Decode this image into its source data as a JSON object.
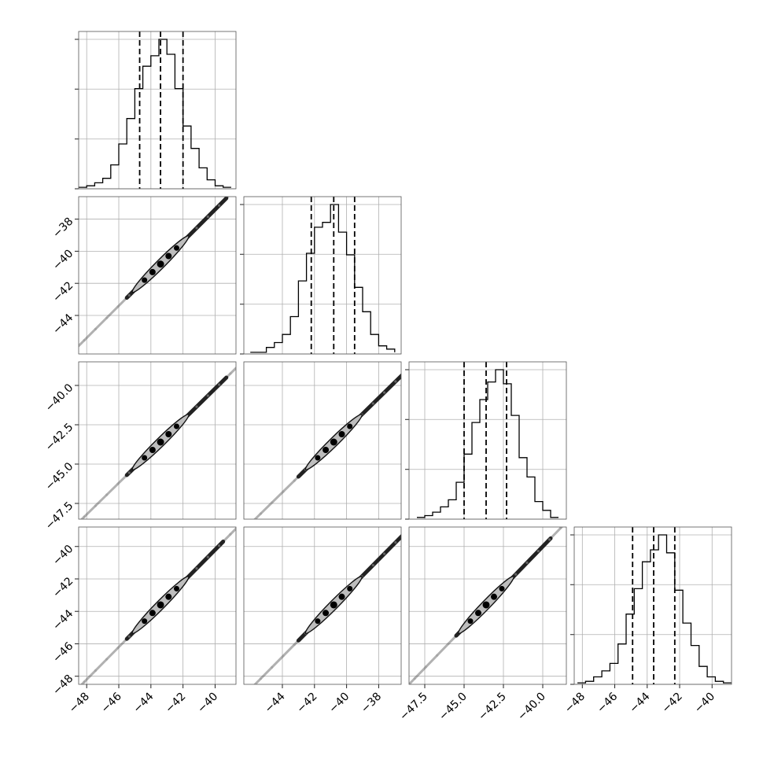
{
  "chart_data": {
    "type": "corner",
    "grid": true,
    "variables": [
      {
        "index": 0,
        "range": [
          -48.5,
          -38.7
        ],
        "ticks": [
          -48,
          -46,
          -44,
          -42,
          -40
        ],
        "tick_labels": [
          "−48",
          "−46",
          "−44",
          "−42",
          "−40"
        ],
        "quantiles": [
          -44.7,
          -43.4,
          -42.0
        ]
      },
      {
        "index": 1,
        "range": [
          -46.4,
          -36.6
        ],
        "ticks": [
          -44,
          -42,
          -40,
          -38
        ],
        "tick_labels": [
          "−44",
          "−42",
          "−40",
          "−38"
        ],
        "quantiles": [
          -42.2,
          -40.8,
          -39.5
        ]
      },
      {
        "index": 2,
        "range": [
          -48.5,
          -38.5
        ],
        "ticks": [
          -47.5,
          -45.0,
          -42.5,
          -40.0
        ],
        "tick_labels": [
          "−47.5",
          "−45.0",
          "−42.5",
          "−40.0"
        ],
        "quantiles": [
          -45.0,
          -43.6,
          -42.3
        ]
      },
      {
        "index": 3,
        "range": [
          -48.5,
          -38.8
        ],
        "ticks": [
          -48,
          -46,
          -44,
          -42,
          -40
        ],
        "tick_labels": [
          "−48",
          "−46",
          "−44",
          "−42",
          "−40"
        ],
        "quantiles": [
          -44.9,
          -43.6,
          -42.3
        ]
      }
    ],
    "histograms": [
      {
        "variable": 0,
        "bin_edges": [
          -48.5,
          -48.0,
          -47.5,
          -47.0,
          -46.5,
          -46.0,
          -45.5,
          -45.0,
          -44.5,
          -44.0,
          -43.5,
          -43.0,
          -42.5,
          -42.0,
          -41.5,
          -41.0,
          -40.5,
          -40.0,
          -39.5,
          -39.0
        ],
        "counts": [
          1,
          2,
          4,
          7,
          16,
          30,
          47,
          67,
          82,
          89,
          100,
          90,
          67,
          42,
          27,
          14,
          6,
          2,
          1
        ]
      },
      {
        "variable": 1,
        "bin_edges": [
          -46.0,
          -45.5,
          -45.0,
          -44.5,
          -44.0,
          -43.5,
          -43.0,
          -42.5,
          -42.0,
          -41.5,
          -41.0,
          -40.5,
          -40.0,
          -39.5,
          -39.0,
          -38.5,
          -38.0,
          -37.5,
          -37.0
        ],
        "counts": [
          1,
          1,
          4,
          7,
          12,
          23,
          45,
          62,
          78,
          81,
          92,
          75,
          61,
          41,
          26,
          12,
          5,
          3,
          1
        ]
      },
      {
        "variable": 2,
        "bin_edges": [
          -48.0,
          -47.5,
          -47.0,
          -46.5,
          -46.0,
          -45.5,
          -45.0,
          -44.5,
          -44.0,
          -43.5,
          -43.0,
          -42.5,
          -42.0,
          -41.5,
          -41.0,
          -40.5,
          -40.0,
          -39.5,
          -39.0
        ],
        "counts": [
          1,
          2,
          4,
          7,
          11,
          21,
          37,
          55,
          68,
          78,
          85,
          77,
          59,
          35,
          24,
          10,
          5,
          1
        ]
      },
      {
        "variable": 3,
        "bin_edges": [
          -48.3,
          -47.8,
          -47.3,
          -46.8,
          -46.3,
          -45.8,
          -45.3,
          -44.8,
          -44.3,
          -43.8,
          -43.3,
          -42.8,
          -42.3,
          -41.8,
          -41.3,
          -40.8,
          -40.3,
          -39.8,
          -39.3,
          -38.8
        ],
        "counts": [
          1,
          2,
          5,
          9,
          14,
          27,
          47,
          64,
          82,
          90,
          100,
          88,
          63,
          41,
          26,
          12,
          5,
          2,
          1
        ]
      }
    ],
    "scatter_panels": [
      {
        "x_variable": 0,
        "y_variable": 1,
        "means": [
          -43.4,
          -40.8
        ],
        "slope": 1.0,
        "correlation": 0.999,
        "spread": [
          -45.5,
          -39.3
        ]
      },
      {
        "x_variable": 0,
        "y_variable": 2,
        "means": [
          -43.4,
          -43.6
        ],
        "slope": 1.0,
        "correlation": 0.999,
        "spread": [
          -45.5,
          -39.3
        ]
      },
      {
        "x_variable": 1,
        "y_variable": 2,
        "means": [
          -40.8,
          -43.6
        ],
        "slope": 1.0,
        "correlation": 0.999,
        "spread": [
          -43.0,
          -36.5
        ]
      },
      {
        "x_variable": 0,
        "y_variable": 3,
        "means": [
          -43.4,
          -43.6
        ],
        "slope": 1.0,
        "correlation": 0.999,
        "spread": [
          -45.5,
          -39.5
        ]
      },
      {
        "x_variable": 1,
        "y_variable": 3,
        "means": [
          -40.8,
          -43.6
        ],
        "slope": 1.0,
        "correlation": 0.999,
        "spread": [
          -43.0,
          -36.5
        ]
      },
      {
        "x_variable": 2,
        "y_variable": 3,
        "means": [
          -43.6,
          -43.6
        ],
        "slope": 1.0,
        "correlation": 0.999,
        "spread": [
          -45.5,
          -39.5
        ]
      }
    ],
    "histogram_ticks": [
      0.0,
      0.333,
      0.667,
      1.0
    ]
  }
}
